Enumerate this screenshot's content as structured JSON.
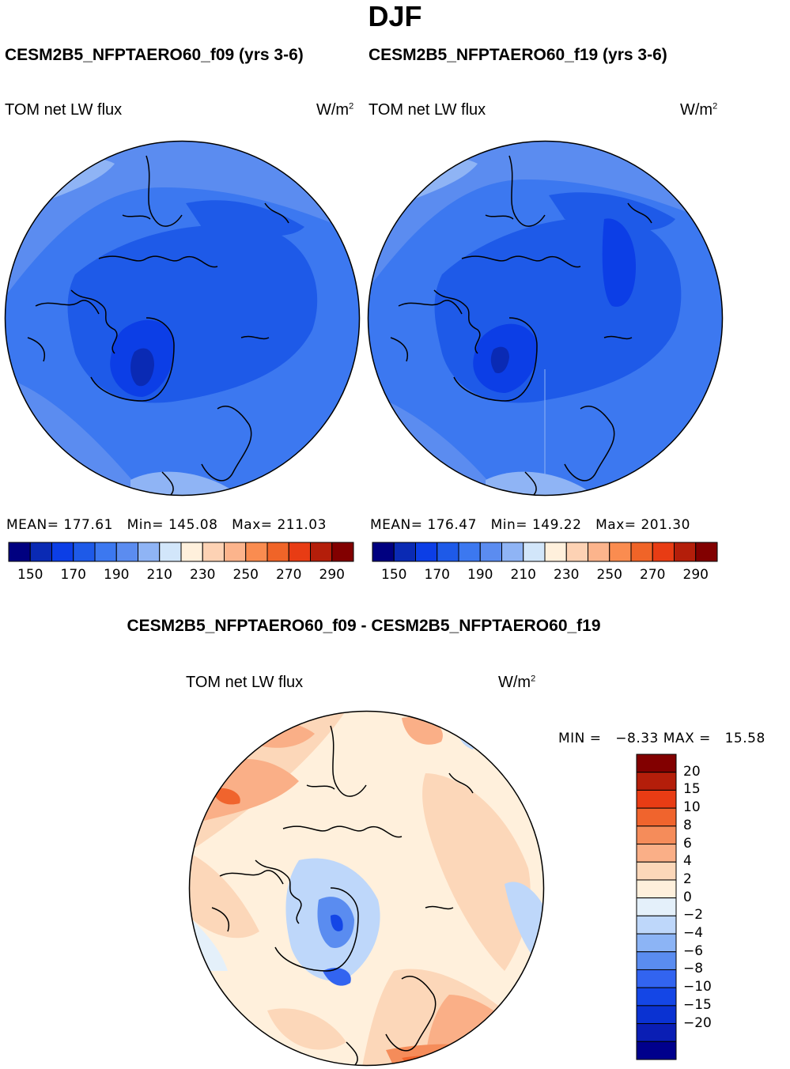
{
  "season": "DJF",
  "variable": "TOM net LW flux",
  "units_base": "W/m",
  "units_exp": "2",
  "colors": {
    "abs_scale": [
      "#000080",
      "#0a2ab4",
      "#0c3ee6",
      "#1e5ae8",
      "#3c78f0",
      "#5b8cf0",
      "#8fb4f5",
      "#d2e6fa",
      "#fff0dc",
      "#fdd2b4",
      "#fcb48c",
      "#fa8c50",
      "#f06428",
      "#e83c14",
      "#b41e0a",
      "#820000"
    ],
    "diff_scale": [
      "#00008c",
      "#0a1eb4",
      "#0a32d2",
      "#1446e6",
      "#3264f0",
      "#5a8cf0",
      "#8cb4f5",
      "#bed7fa",
      "#e4f0fa",
      "#fff0dc",
      "#fcd7b9",
      "#faaf87",
      "#f58c5a",
      "#f0642d",
      "#e83c14",
      "#b41e0a",
      "#820000"
    ]
  },
  "chart_data": [
    {
      "type": "heatmap",
      "projection": "polar stereographic (north)",
      "title": "CESM2B5_NFPTAERO60_f09 (yrs 3-6)",
      "left_label": "TOM net LW flux",
      "mean_label": "MEAN=",
      "mean": "177.61",
      "min_label": "Min=",
      "min": "145.08",
      "max_label": "Max=",
      "max": "211.03",
      "colorbar_ticks": [
        "150",
        "170",
        "190",
        "210",
        "230",
        "250",
        "270",
        "290"
      ],
      "levels": [
        145,
        150,
        160,
        170,
        180,
        190,
        200,
        210,
        220,
        230,
        240,
        250,
        260,
        270,
        280,
        290,
        300
      ]
    },
    {
      "type": "heatmap",
      "projection": "polar stereographic (north)",
      "title": "CESM2B5_NFPTAERO60_f19 (yrs 3-6)",
      "left_label": "TOM net LW flux",
      "mean_label": "MEAN=",
      "mean": "176.47",
      "min_label": "Min=",
      "min": "149.22",
      "max_label": "Max=",
      "max": "201.30",
      "colorbar_ticks": [
        "150",
        "170",
        "190",
        "210",
        "230",
        "250",
        "270",
        "290"
      ],
      "levels": [
        145,
        150,
        160,
        170,
        180,
        190,
        200,
        210,
        220,
        230,
        240,
        250,
        260,
        270,
        280,
        290,
        300
      ]
    },
    {
      "type": "heatmap",
      "projection": "polar stereographic (north)",
      "title": "CESM2B5_NFPTAERO60_f09 - CESM2B5_NFPTAERO60_f19",
      "left_label": "TOM net LW flux",
      "min_label": "MIN =",
      "min": "−8.33",
      "max_label": "MAX =",
      "max": "15.58",
      "colorbar_ticks": [
        "20",
        "15",
        "10",
        "8",
        "6",
        "4",
        "2",
        "0",
        "−2",
        "−4",
        "−6",
        "−8",
        "−10",
        "−15",
        "−20"
      ]
    }
  ]
}
